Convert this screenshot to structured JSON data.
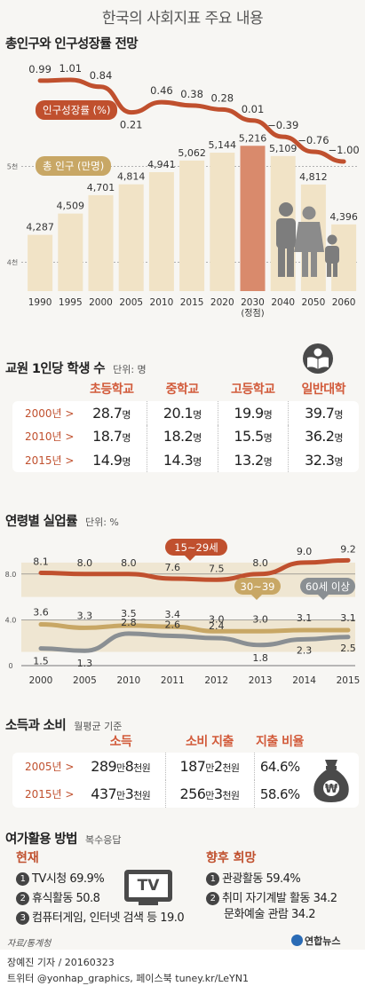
{
  "page": {
    "title": "한국의 사회지표 주요 내용",
    "source": "자료/통계청",
    "byline": "장예진 기자 / 20160323",
    "sns": "트위터 @yonhap_graphics, 페이스북 tuney.kr/LeYN1",
    "logo": "연합뉴스"
  },
  "colors": {
    "red": "#c0502e",
    "tan": "#c8a765",
    "gray": "#8a8f93",
    "bar": "#f1e3c6",
    "bar_highlight": "#d98a6c"
  },
  "population": {
    "title": "총인구와 인구성장률 전망",
    "growth_label": "인구성장률 (%)",
    "pop_label": "총 인구 (만명)",
    "peak_note": "(정점)",
    "y_ticks": [
      "5천",
      "4천"
    ]
  },
  "chart_data": [
    {
      "type": "line",
      "title": "인구성장률 (%)",
      "categories": [
        "1990",
        "1995",
        "2000",
        "2005",
        "2010",
        "2015",
        "2020",
        "2030",
        "2040",
        "2050",
        "2060"
      ],
      "values": [
        0.99,
        1.01,
        0.84,
        0.21,
        0.46,
        0.38,
        0.28,
        0.01,
        -0.39,
        -0.76,
        -1.0
      ],
      "labels": [
        "0.99",
        "1.01",
        "0.84",
        "0.21",
        "0.46",
        "0.38",
        "0.28",
        "0.01",
        "−0.39",
        "−0.76",
        "−1.00"
      ]
    },
    {
      "type": "bar",
      "title": "총 인구 (만명)",
      "categories": [
        "1990",
        "1995",
        "2000",
        "2005",
        "2010",
        "2015",
        "2020",
        "2030",
        "2040",
        "2050",
        "2060"
      ],
      "values": [
        4287,
        4509,
        4701,
        4814,
        4941,
        5062,
        5144,
        5216,
        5109,
        4812,
        4396
      ],
      "labels": [
        "4,287",
        "4,509",
        "4,701",
        "4,814",
        "4,941",
        "5,062",
        "5,144",
        "5,216",
        "5,109",
        "4,812",
        "4,396"
      ],
      "yticks": [
        "4천",
        "5천"
      ],
      "highlight": "2030"
    },
    {
      "type": "line",
      "title": "연령별 실업률",
      "categories": [
        "2000",
        "2005",
        "2010",
        "2011",
        "2012",
        "2013",
        "2014",
        "2015"
      ],
      "yticks": [
        "8.0",
        "4.0",
        "0"
      ],
      "ylim": [
        0,
        10
      ],
      "series": [
        {
          "name": "15~29세",
          "values": [
            8.1,
            8.0,
            8.0,
            7.6,
            7.5,
            8.0,
            9.0,
            9.2
          ],
          "labels": [
            "8.1",
            "8.0",
            "8.0",
            "7.6",
            "7.5",
            "8.0",
            "9.0",
            "9.2"
          ]
        },
        {
          "name": "30~39",
          "values": [
            3.6,
            3.3,
            3.5,
            3.4,
            3.0,
            3.0,
            3.1,
            3.1
          ],
          "labels": [
            "3.6",
            "3.3",
            "3.5",
            "3.4",
            "3.0",
            "3.0",
            "3.1",
            "3.1"
          ]
        },
        {
          "name": "60세 이상",
          "values": [
            1.5,
            1.3,
            2.8,
            2.6,
            2.4,
            1.8,
            2.3,
            2.5
          ],
          "labels": [
            "1.5",
            "1.3",
            "2.8",
            "2.6",
            "2.4",
            "1.8",
            "2.3",
            "2.5"
          ]
        }
      ]
    },
    {
      "type": "table",
      "title": "교원 1인당 학생 수",
      "columns": [
        "초등학교",
        "중학교",
        "고등학교",
        "일반대학"
      ],
      "rows": [
        {
          "year": "2000년",
          "values": [
            "28.7",
            "20.1",
            "19.9",
            "39.7"
          ]
        },
        {
          "year": "2010년",
          "values": [
            "18.7",
            "18.2",
            "15.5",
            "36.2"
          ]
        },
        {
          "year": "2015년",
          "values": [
            "14.9",
            "14.3",
            "13.2",
            "32.3"
          ]
        }
      ]
    },
    {
      "type": "table",
      "title": "소득과 소비",
      "columns": [
        "소득",
        "소비 지출",
        "지출 비율"
      ],
      "rows": [
        {
          "year": "2005년",
          "income": "289만8천원",
          "spend": "187만2천원",
          "ratio": "64.6%"
        },
        {
          "year": "2015년",
          "income": "437만3천원",
          "spend": "256만3천원",
          "ratio": "58.6%"
        }
      ]
    }
  ],
  "teacher": {
    "title": "교원 1인당 학생 수",
    "unit": "단위: 명",
    "cols": [
      "초등학교",
      "중학교",
      "고등학교",
      "일반대학"
    ],
    "unit_suffix": "명",
    "rows": [
      {
        "year": "2000년 >",
        "v": [
          "28.7",
          "20.1",
          "19.9",
          "39.7"
        ]
      },
      {
        "year": "2010년 >",
        "v": [
          "18.7",
          "18.2",
          "15.5",
          "36.2"
        ]
      },
      {
        "year": "2015년 >",
        "v": [
          "14.9",
          "14.3",
          "13.2",
          "32.3"
        ]
      }
    ]
  },
  "unemployment": {
    "title": "연령별 실업률",
    "unit": "단위: %"
  },
  "income": {
    "title": "소득과 소비",
    "sub": "월평균 기준",
    "cols": [
      "소득",
      "소비 지출",
      "지출 비율"
    ],
    "rows": [
      {
        "year": "2005년 >",
        "i1": "289",
        "i2": "만",
        "i3": "8",
        "i4": "천원",
        "s1": "187",
        "s2": "만",
        "s3": "2",
        "s4": "천원",
        "r": "64.6%"
      },
      {
        "year": "2015년 >",
        "i1": "437",
        "i2": "만",
        "i3": "3",
        "i4": "천원",
        "s1": "256",
        "s2": "만",
        "s3": "3",
        "s4": "천원",
        "r": "58.6%"
      }
    ],
    "bag_symbol": "₩"
  },
  "leisure": {
    "title": "여가활용 방법",
    "sub": "복수응답",
    "now_label": "현재",
    "future_label": "향후 희망",
    "tv": "TV",
    "now_items": [
      {
        "n": "1",
        "text": "TV시청 69.9%"
      },
      {
        "n": "2",
        "text": "휴식활동 50.8"
      },
      {
        "n": "3",
        "text": "컴퓨터게임, 인터넷 검색 등 19.0"
      }
    ],
    "future_items": [
      {
        "n": "1",
        "text": "관광활동 59.4%"
      },
      {
        "n": "2",
        "text": "취미 자기계발 활동 34.2"
      },
      {
        "n": "",
        "text": "문화예술 관람 34.2"
      }
    ]
  }
}
